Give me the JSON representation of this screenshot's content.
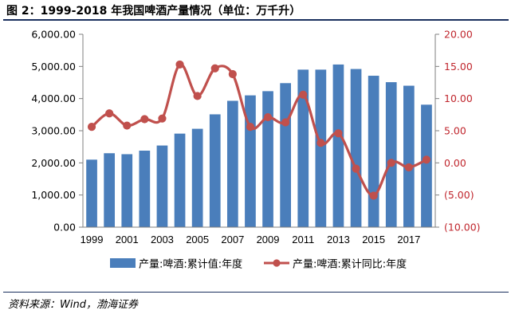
{
  "figure": {
    "title": "图 2：1999-2018 年我国啤酒产量情况（单位：万千升）",
    "source": "资料来源：Wind，渤海证券"
  },
  "colors": {
    "bar": "#4a7ebb",
    "line": "#c0504d",
    "right_axis": "#c0262d",
    "rule": "#1a2f5e"
  },
  "chart_data": {
    "type": "bar",
    "categories": [
      "1999",
      "2000",
      "2001",
      "2002",
      "2003",
      "2004",
      "2005",
      "2006",
      "2007",
      "2008",
      "2009",
      "2010",
      "2011",
      "2012",
      "2013",
      "2014",
      "2015",
      "2016",
      "2017",
      "2018"
    ],
    "x_tick_labels": [
      "1999",
      "2001",
      "2003",
      "2005",
      "2007",
      "2009",
      "2011",
      "2013",
      "2015",
      "2017"
    ],
    "series": [
      {
        "name": "产量:啤酒:累计值:年度",
        "type": "bar",
        "axis": "left",
        "values": [
          2100,
          2300,
          2270,
          2380,
          2540,
          2910,
          3060,
          3510,
          3930,
          4100,
          4230,
          4480,
          4900,
          4900,
          5060,
          4920,
          4710,
          4510,
          4400,
          3810
        ]
      },
      {
        "name": "产量:啤酒:累计同比:年度",
        "type": "line",
        "axis": "right",
        "values": [
          5.6,
          7.7,
          5.8,
          6.8,
          6.9,
          15.3,
          10.4,
          14.7,
          13.8,
          5.6,
          7.1,
          6.3,
          10.6,
          3.1,
          4.6,
          -0.9,
          -5.1,
          0.0,
          -0.7,
          0.5
        ]
      }
    ],
    "y_left": {
      "min": 0,
      "max": 6000,
      "ticks": [
        0,
        1000,
        2000,
        3000,
        4000,
        5000,
        6000
      ],
      "tick_labels": [
        "0.00",
        "1,000.00",
        "2,000.00",
        "3,000.00",
        "4,000.00",
        "5,000.00",
        "6,000.00"
      ]
    },
    "y_right": {
      "min": -10,
      "max": 20,
      "ticks": [
        -10,
        -5,
        0,
        5,
        10,
        15,
        20
      ],
      "tick_labels": [
        "(10.00)",
        "(5.00)",
        "0.00",
        "5.00",
        "10.00",
        "15.00",
        "20.00"
      ]
    },
    "grid": false,
    "legend_position": "bottom"
  }
}
